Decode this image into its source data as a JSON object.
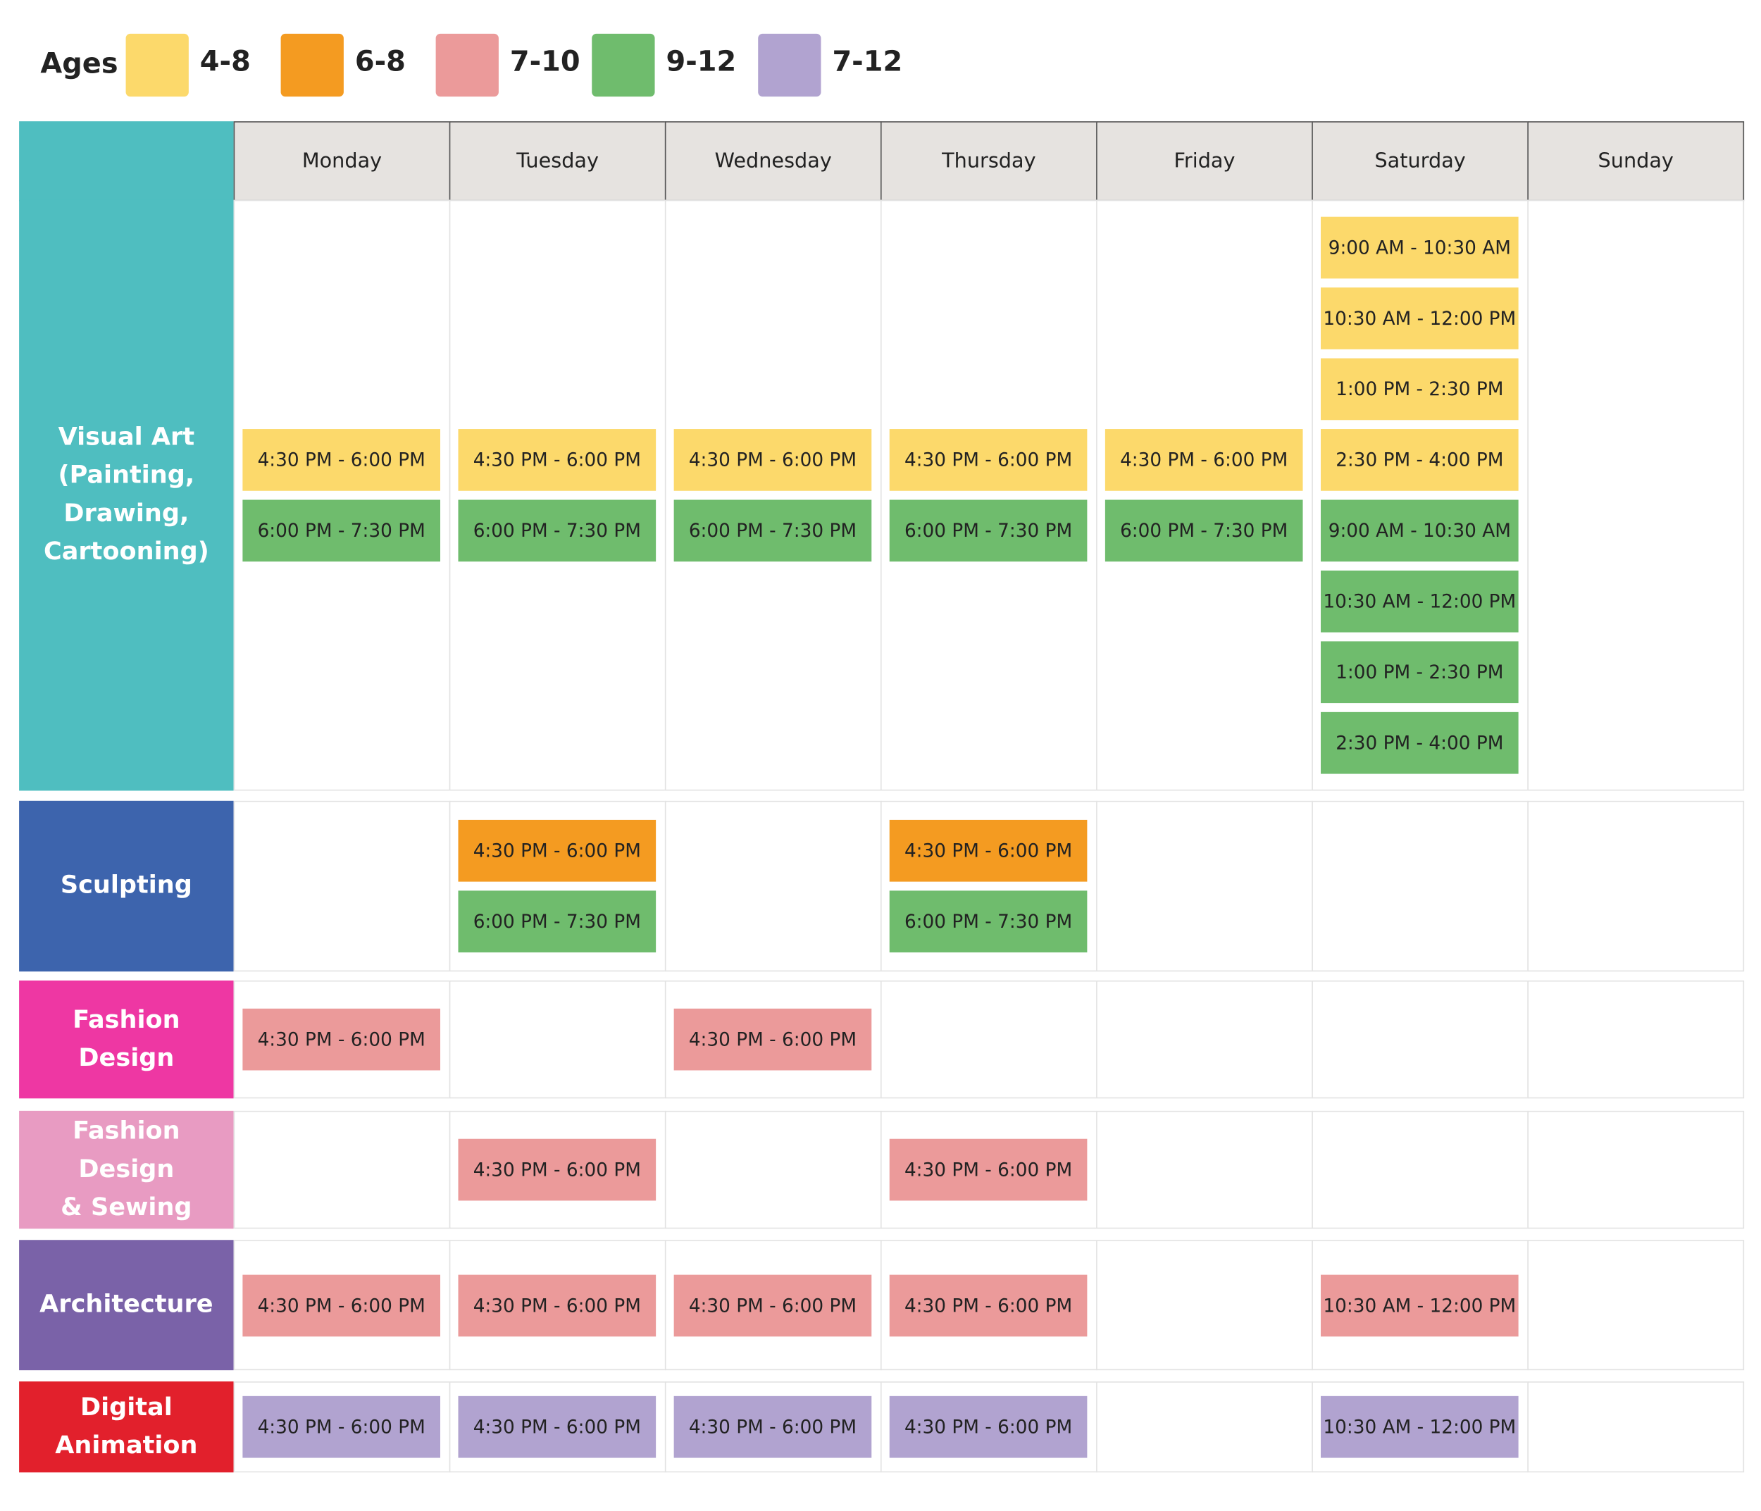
{
  "legend": {
    "title": "Ages",
    "items": [
      {
        "label": "4-8",
        "color": "#fcd96b"
      },
      {
        "label": "6-8",
        "color": "#f49b21"
      },
      {
        "label": "7-10",
        "color": "#eb9a9a"
      },
      {
        "label": "9-12",
        "color": "#6fbc6d"
      },
      {
        "label": "7-12",
        "color": "#b1a3d0"
      }
    ]
  },
  "days": [
    "Monday",
    "Tuesday",
    "Wednesday",
    "Thursday",
    "Friday",
    "Saturday",
    "Sunday"
  ],
  "rows": [
    {
      "label": [
        "Visual Art",
        "(Painting,",
        "Drawing,",
        "Cartooning)"
      ],
      "color": "#4fbec0",
      "cells": [
        [
          {
            "time": "4:30 PM - 6:00 PM",
            "ages": "4-8"
          },
          {
            "time": "6:00 PM - 7:30 PM",
            "ages": "9-12"
          }
        ],
        [
          {
            "time": "4:30 PM - 6:00 PM",
            "ages": "4-8"
          },
          {
            "time": "6:00 PM - 7:30 PM",
            "ages": "9-12"
          }
        ],
        [
          {
            "time": "4:30 PM - 6:00 PM",
            "ages": "4-8"
          },
          {
            "time": "6:00 PM - 7:30 PM",
            "ages": "9-12"
          }
        ],
        [
          {
            "time": "4:30 PM - 6:00 PM",
            "ages": "4-8"
          },
          {
            "time": "6:00 PM - 7:30 PM",
            "ages": "9-12"
          }
        ],
        [
          {
            "time": "4:30 PM - 6:00 PM",
            "ages": "4-8"
          },
          {
            "time": "6:00 PM - 7:30 PM",
            "ages": "9-12"
          }
        ],
        [
          {
            "time": "9:00 AM - 10:30 AM",
            "ages": "4-8"
          },
          {
            "time": "10:30 AM - 12:00 PM",
            "ages": "4-8"
          },
          {
            "time": "1:00 PM - 2:30 PM",
            "ages": "4-8"
          },
          {
            "time": "2:30 PM - 4:00 PM",
            "ages": "4-8"
          },
          {
            "time": "9:00 AM - 10:30 AM",
            "ages": "9-12"
          },
          {
            "time": "10:30 AM - 12:00 PM",
            "ages": "9-12"
          },
          {
            "time": "1:00 PM - 2:30 PM",
            "ages": "9-12"
          },
          {
            "time": "2:30 PM - 4:00 PM",
            "ages": "9-12"
          }
        ],
        []
      ]
    },
    {
      "label": [
        "Sculpting"
      ],
      "color": "#3d64ad",
      "cells": [
        [],
        [
          {
            "time": "4:30 PM - 6:00 PM",
            "ages": "6-8"
          },
          {
            "time": "6:00 PM - 7:30 PM",
            "ages": "9-12"
          }
        ],
        [],
        [
          {
            "time": "4:30 PM - 6:00 PM",
            "ages": "6-8"
          },
          {
            "time": "6:00 PM - 7:30 PM",
            "ages": "9-12"
          }
        ],
        [],
        [],
        []
      ]
    },
    {
      "label": [
        "Fashion",
        "Design"
      ],
      "color": "#ee37a3",
      "cells": [
        [
          {
            "time": "4:30 PM - 6:00 PM",
            "ages": "7-10"
          }
        ],
        [],
        [
          {
            "time": "4:30 PM - 6:00 PM",
            "ages": "7-10"
          }
        ],
        [],
        [],
        [],
        []
      ]
    },
    {
      "label": [
        "Fashion",
        "Design",
        "& Sewing"
      ],
      "color": "#e89bc2",
      "cells": [
        [],
        [
          {
            "time": "4:30 PM - 6:00 PM",
            "ages": "7-10"
          }
        ],
        [],
        [
          {
            "time": "4:30 PM - 6:00 PM",
            "ages": "7-10"
          }
        ],
        [],
        [],
        []
      ]
    },
    {
      "label": [
        "Architecture"
      ],
      "color": "#7a62a8",
      "cells": [
        [
          {
            "time": "4:30 PM - 6:00 PM",
            "ages": "7-10"
          }
        ],
        [
          {
            "time": "4:30 PM - 6:00 PM",
            "ages": "7-10"
          }
        ],
        [
          {
            "time": "4:30 PM - 6:00 PM",
            "ages": "7-10"
          }
        ],
        [
          {
            "time": "4:30 PM - 6:00 PM",
            "ages": "7-10"
          }
        ],
        [],
        [
          {
            "time": "10:30 AM - 12:00 PM",
            "ages": "7-10"
          }
        ],
        []
      ]
    },
    {
      "label": [
        "Digital",
        "Animation"
      ],
      "color": "#e2202c",
      "cells": [
        [
          {
            "time": "4:30 PM - 6:00 PM",
            "ages": "7-12"
          }
        ],
        [
          {
            "time": "4:30 PM - 6:00 PM",
            "ages": "7-12"
          }
        ],
        [
          {
            "time": "4:30 PM - 6:00 PM",
            "ages": "7-12"
          }
        ],
        [
          {
            "time": "4:30 PM - 6:00 PM",
            "ages": "7-12"
          }
        ],
        [],
        [
          {
            "time": "10:30 AM - 12:00 PM",
            "ages": "7-12"
          }
        ],
        []
      ]
    }
  ]
}
